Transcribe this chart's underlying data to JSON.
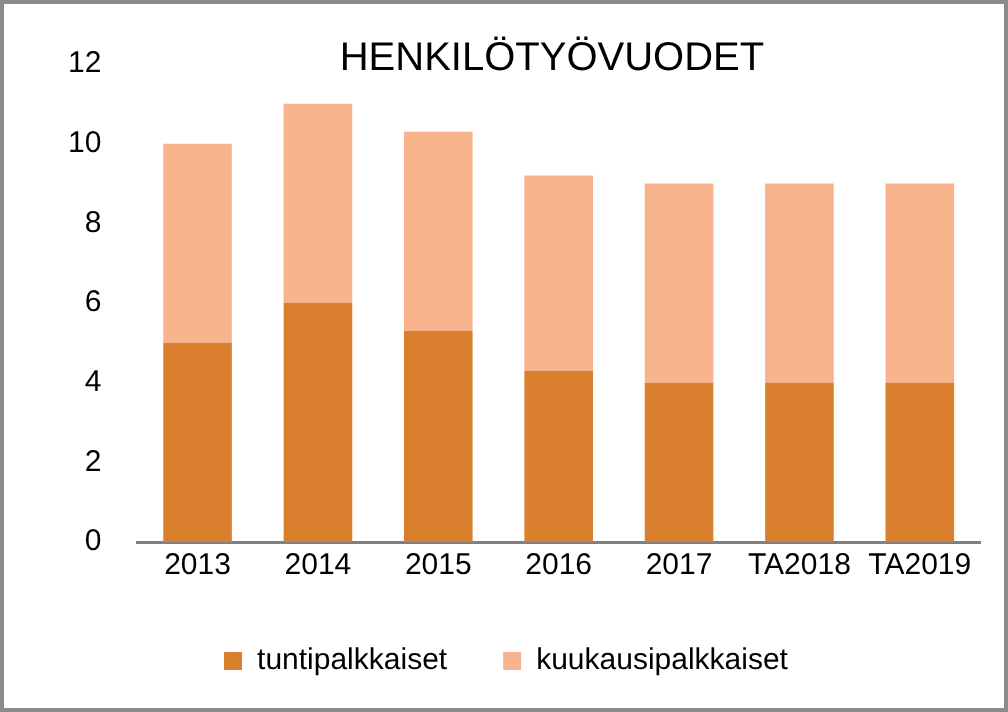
{
  "chart_data": {
    "type": "bar",
    "title": "HENKILÖTYÖVUODET",
    "categories": [
      "2013",
      "2014",
      "2015",
      "2016",
      "2017",
      "TA2018",
      "TA2019"
    ],
    "stacked": true,
    "series": [
      {
        "name": "tuntipalkkaiset",
        "color": "#d97f2e",
        "values": [
          5,
          6,
          5.3,
          4.3,
          4,
          4,
          4
        ]
      },
      {
        "name": "kuukausipalkkaiset",
        "color": "#f7b38c",
        "values": [
          5,
          5,
          5,
          4.9,
          5,
          5,
          5
        ]
      }
    ],
    "ylim": [
      0,
      12
    ],
    "yticks": [
      0,
      2,
      4,
      6,
      8,
      10,
      12
    ],
    "grid": false,
    "legend": "bottom"
  }
}
